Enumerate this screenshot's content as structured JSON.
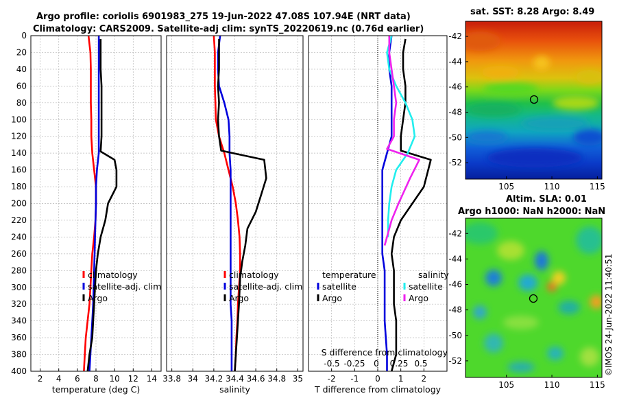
{
  "title": {
    "line1": "Argo profile: coriolis 6901983_275 19-Jun-2022 47.08S 107.94E (NRT data)",
    "line2": "Climatology: CARS2009. Satellite-adj clim: synTS_20220619.nc (0.76d earlier)"
  },
  "credit": "©IMOS 24-Jun-2022 11:40:51",
  "colors": {
    "red": "#ff0000",
    "blue": "#0000dd",
    "black": "#000000",
    "cyan": "#22eeee",
    "magenta": "#ee22ee",
    "grid": "#b8b8b8"
  },
  "chart_data": [
    {
      "type": "line",
      "id": "temperature",
      "xlabel": "temperature (deg C)",
      "ylabel": "depth",
      "xlim": [
        1,
        15
      ],
      "ylim": [
        0,
        400
      ],
      "xticks": [
        "2",
        "4",
        "6",
        "8",
        "10",
        "12",
        "14"
      ],
      "yticks": [
        "0",
        "20",
        "40",
        "60",
        "80",
        "100",
        "120",
        "140",
        "160",
        "180",
        "200",
        "220",
        "240",
        "260",
        "280",
        "300",
        "320",
        "340",
        "360",
        "380",
        "400"
      ],
      "legend": [
        "climatology",
        "satellite-adj. clim",
        "Argo"
      ],
      "series": [
        {
          "name": "climatology",
          "color": "red",
          "x": [
            7.2,
            7.4,
            7.45,
            7.45,
            7.45,
            7.5,
            7.5,
            7.6,
            7.8,
            8.0,
            8.0,
            7.95,
            7.8,
            7.6,
            7.5,
            7.4,
            7.3,
            7.1,
            6.9,
            6.8,
            6.7
          ],
          "y": [
            0,
            20,
            40,
            60,
            80,
            100,
            120,
            140,
            160,
            180,
            200,
            220,
            240,
            260,
            280,
            300,
            320,
            340,
            360,
            380,
            400
          ]
        },
        {
          "name": "satellite-adj. clim",
          "color": "blue",
          "x": [
            8.3,
            8.3,
            8.3,
            8.3,
            8.3,
            8.3,
            8.3,
            8.3,
            8.1,
            8.0,
            8.0,
            7.95,
            7.9,
            7.85,
            7.8,
            7.75,
            7.7,
            7.6,
            7.5,
            7.4,
            7.3
          ],
          "y": [
            0,
            20,
            40,
            60,
            80,
            100,
            120,
            140,
            160,
            180,
            200,
            220,
            240,
            260,
            280,
            300,
            320,
            340,
            360,
            380,
            400
          ]
        },
        {
          "name": "Argo",
          "color": "black",
          "x": [
            8.5,
            8.5,
            8.5,
            8.6,
            8.6,
            8.6,
            8.6,
            8.5,
            10.0,
            10.2,
            10.2,
            9.3,
            9.0,
            8.5,
            8.2,
            8.0,
            7.9,
            7.8,
            7.7,
            7.6,
            7.3,
            7.1
          ],
          "y": [
            4,
            20,
            40,
            60,
            80,
            100,
            120,
            138,
            148,
            160,
            180,
            200,
            220,
            240,
            260,
            280,
            300,
            320,
            340,
            360,
            380,
            400
          ]
        }
      ]
    },
    {
      "type": "line",
      "id": "salinity",
      "xlabel": "salinity",
      "xlim": [
        33.75,
        35.05
      ],
      "ylim": [
        0,
        400
      ],
      "xticks": [
        "33.8",
        "34",
        "34.2",
        "34.4",
        "34.6",
        "34.8",
        "35"
      ],
      "legend": [
        "climatology",
        "satellite-adj. clim",
        "Argo"
      ],
      "series": [
        {
          "name": "climatology",
          "color": "red",
          "x": [
            34.2,
            34.21,
            34.21,
            34.21,
            34.215,
            34.22,
            34.25,
            34.3,
            34.34,
            34.38,
            34.41,
            34.43,
            34.445,
            34.45,
            34.45,
            34.44,
            34.43,
            34.425,
            34.415,
            34.41,
            34.4
          ],
          "y": [
            0,
            20,
            40,
            60,
            80,
            100,
            120,
            140,
            160,
            180,
            200,
            220,
            240,
            260,
            280,
            300,
            320,
            340,
            360,
            380,
            400
          ]
        },
        {
          "name": "satellite-adj. clim",
          "color": "blue",
          "x": [
            34.26,
            34.24,
            34.24,
            34.25,
            34.3,
            34.34,
            34.35,
            34.35,
            34.36,
            34.36,
            34.36,
            34.36,
            34.36,
            34.36,
            34.36,
            34.36,
            34.36,
            34.37,
            34.37,
            34.37,
            34.37
          ],
          "y": [
            0,
            20,
            40,
            60,
            80,
            100,
            120,
            140,
            160,
            180,
            200,
            220,
            240,
            260,
            280,
            300,
            320,
            340,
            360,
            380,
            400
          ]
        },
        {
          "name": "Argo",
          "color": "black",
          "x": [
            34.25,
            34.25,
            34.25,
            34.24,
            34.25,
            34.24,
            34.25,
            34.27,
            34.68,
            34.7,
            34.65,
            34.6,
            34.52,
            34.5,
            34.47,
            34.45,
            34.44,
            34.43,
            34.42,
            34.41,
            34.4
          ],
          "y": [
            4,
            20,
            40,
            60,
            80,
            100,
            120,
            137,
            148,
            170,
            190,
            210,
            230,
            250,
            270,
            290,
            320,
            340,
            360,
            380,
            400
          ]
        }
      ]
    },
    {
      "type": "line",
      "id": "difference",
      "xlabel": "T difference from climatology",
      "xlabel_top": "S difference from climatology",
      "xlim": [
        -3,
        3
      ],
      "ylim": [
        0,
        400
      ],
      "xticks": [
        "-2",
        "-1",
        "0",
        "1",
        "2"
      ],
      "xticks_top": [
        "-0.5",
        "-0.25",
        "0",
        "0.25",
        "0.5"
      ],
      "zero_line": 0,
      "legend_headers": [
        "temperature",
        "salinity"
      ],
      "legend": [
        "satellite",
        "Argo",
        "satellite",
        "Argo"
      ],
      "series": [
        {
          "name": "T satellite",
          "color": "blue",
          "x": [
            0.6,
            0.5,
            0.5,
            0.6,
            0.6,
            0.6,
            0.6,
            0.4,
            0.2,
            0.2,
            0.2,
            0.2,
            0.2,
            0.2,
            0.3,
            0.3,
            0.3,
            0.3,
            0.35,
            0.4,
            0.4
          ],
          "y": [
            0,
            20,
            40,
            60,
            80,
            100,
            120,
            140,
            160,
            180,
            200,
            220,
            240,
            260,
            280,
            300,
            320,
            340,
            360,
            380,
            400
          ]
        },
        {
          "name": "T Argo",
          "color": "black",
          "x": [
            1.2,
            1.1,
            1.1,
            1.2,
            1.2,
            1.1,
            1.0,
            1.0,
            2.3,
            2.0,
            1.5,
            1.0,
            0.7,
            0.6,
            0.7,
            0.7,
            0.7,
            0.8,
            0.8,
            0.8,
            0.6
          ],
          "y": [
            4,
            20,
            40,
            60,
            80,
            100,
            120,
            137,
            148,
            180,
            200,
            220,
            240,
            260,
            280,
            300,
            320,
            340,
            360,
            380,
            400
          ]
        },
        {
          "name": "S satellite",
          "color": "cyan",
          "x": [
            0.6,
            0.4,
            0.5,
            0.8,
            1.2,
            1.5,
            1.6,
            1.3,
            0.8,
            0.6,
            0.5,
            0.45,
            0.45
          ],
          "y": [
            0,
            20,
            40,
            60,
            80,
            100,
            120,
            140,
            160,
            180,
            200,
            220,
            240
          ]
        },
        {
          "name": "S Argo",
          "color": "magenta",
          "x": [
            0.5,
            0.5,
            0.6,
            0.7,
            0.8,
            0.7,
            0.7,
            0.4,
            1.8,
            1.4,
            0.9,
            0.6,
            0.4,
            0.3
          ],
          "y": [
            0,
            20,
            40,
            60,
            80,
            100,
            120,
            135,
            148,
            170,
            200,
            220,
            240,
            250
          ]
        }
      ]
    },
    {
      "type": "heatmap",
      "id": "sst",
      "title": "sat. SST: 8.28 Argo: 8.49",
      "xlim": [
        100.5,
        115.5
      ],
      "ylim": [
        -53.3,
        -40.8
      ],
      "xticks": [
        "105",
        "110",
        "115"
      ],
      "yticks": [
        "-42",
        "-44",
        "-46",
        "-48",
        "-50",
        "-52"
      ],
      "marker": {
        "lon": 107.94,
        "lat": -47.08
      }
    },
    {
      "type": "heatmap",
      "id": "sla",
      "title_line1": "Altim. SLA: 0.01",
      "title_line2": "Argo h1000: NaN h2000: NaN",
      "xlim": [
        100.5,
        115.5
      ],
      "ylim": [
        -53.3,
        -40.8
      ],
      "xticks": [
        "105",
        "110",
        "115"
      ],
      "yticks": [
        "-42",
        "-44",
        "-46",
        "-48",
        "-50",
        "-52"
      ],
      "marker": {
        "lon": 107.94,
        "lat": -47.08
      }
    }
  ]
}
